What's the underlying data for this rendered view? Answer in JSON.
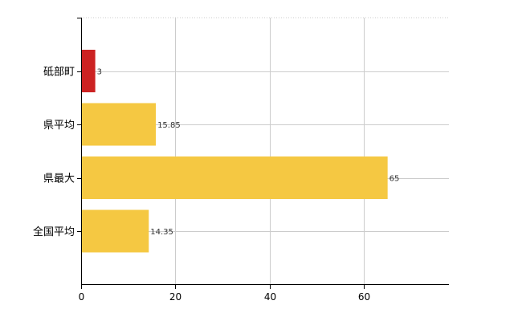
{
  "chart_data": {
    "type": "bar",
    "orientation": "horizontal",
    "title": "",
    "xlabel": "",
    "ylabel": "",
    "categories": [
      "砥部町",
      "県平均",
      "県最大",
      "全国平均"
    ],
    "values": [
      3,
      15.85,
      65,
      14.35
    ],
    "value_labels": [
      "3",
      "15.85",
      "65",
      "14.35"
    ],
    "bar_colors": [
      "#cc2222",
      "#f5c842",
      "#f5c842",
      "#f5c842"
    ],
    "xlim": [
      0,
      78
    ],
    "x_ticks": [
      0,
      20,
      40,
      60
    ],
    "x_tick_labels": [
      "0",
      "20",
      "40",
      "60"
    ],
    "grid": "vertical and horizontal dotted",
    "colors": {
      "highlight": "#cc2222",
      "bar": "#f5c842",
      "grid": "#cccccc",
      "axis": "#000000"
    }
  }
}
